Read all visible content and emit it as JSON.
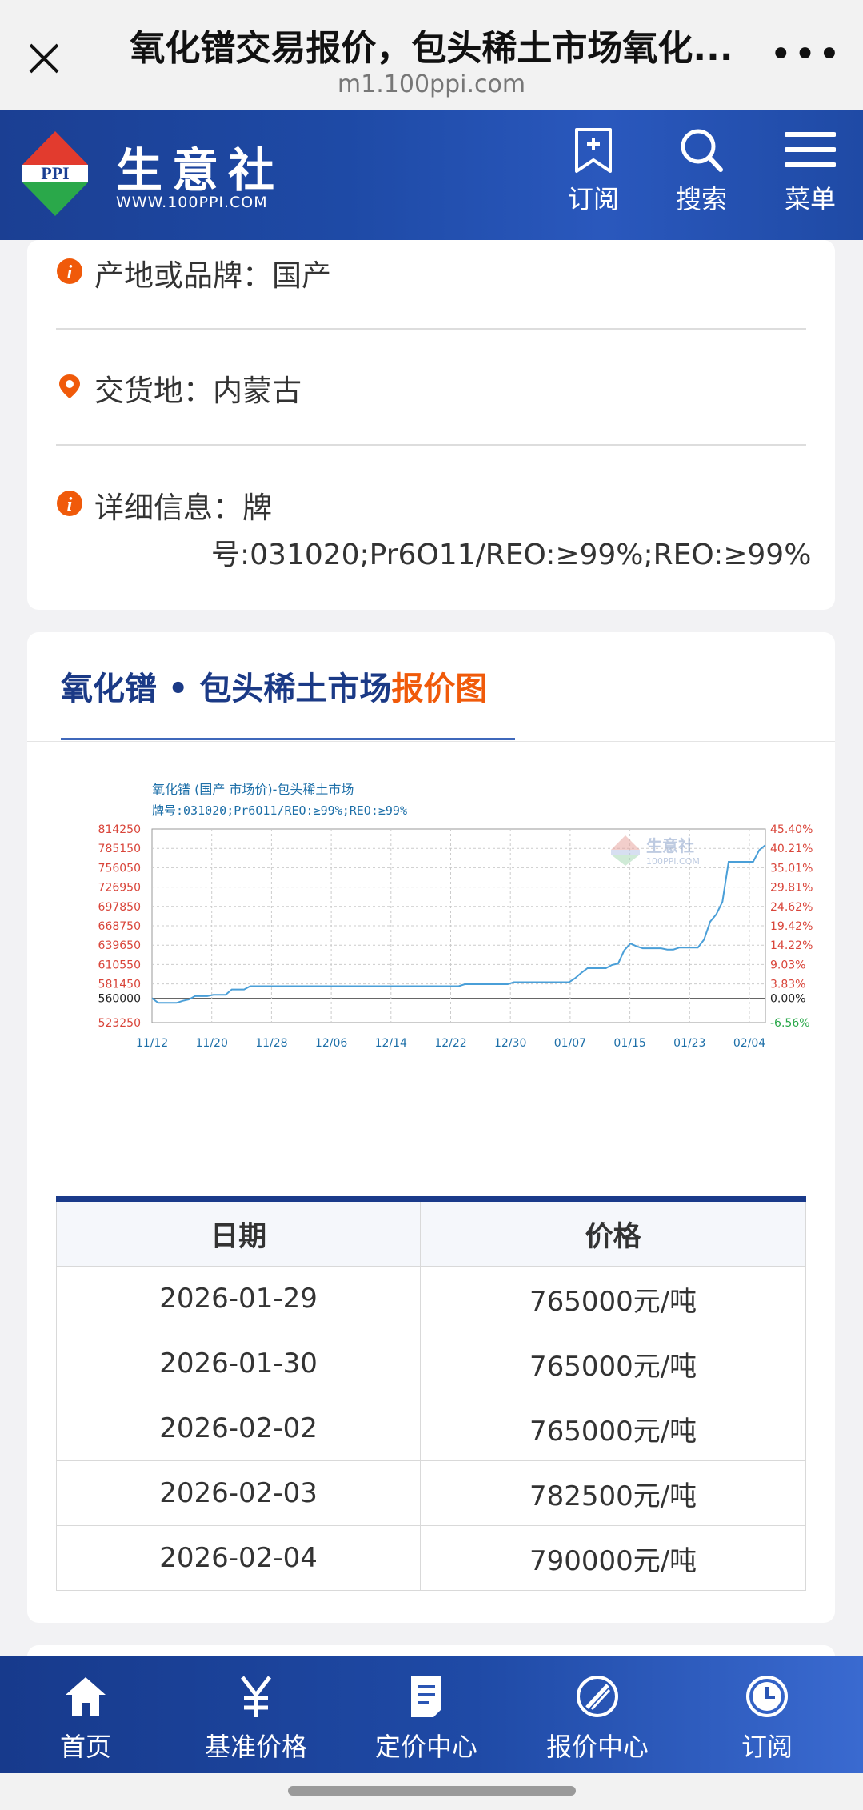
{
  "browser": {
    "title": "氧化镨交易报价，包头稀土市场氧化...",
    "url": "m1.100ppi.com"
  },
  "header": {
    "brand": "生意社",
    "brand_url": "WWW.100PPI.COM",
    "logo_text": "PPI",
    "subscribe_label": "订阅",
    "search_label": "搜索",
    "menu_label": "菜单"
  },
  "info": {
    "origin_label": "产地或品牌：",
    "origin_value": "国产",
    "delivery_label": "交货地：",
    "delivery_value": "内蒙古",
    "detail_label": "详细信息：",
    "detail_value_1": "牌",
    "detail_value_2": "号:031020;Pr6O11/REO:≥99%;REO:≥99%"
  },
  "chart_section": {
    "title_main": "氧化镨 • 包头稀土市场",
    "title_highlight": "报价图"
  },
  "chart_data": {
    "type": "line",
    "title": "氧化镨 (国产 市场价)-包头稀土市场",
    "subtitle": "牌号:031020;Pr6O11/REO:≥99%;REO:≥99%",
    "watermark": "生意社",
    "watermark_url": "100PPI.COM",
    "x_ticks": [
      "11/12",
      "11/20",
      "11/28",
      "12/06",
      "12/14",
      "12/22",
      "12/30",
      "01/07",
      "01/15",
      "01/23",
      "02/04"
    ],
    "y_left_ticks": [
      "814250",
      "785150",
      "756050",
      "726950",
      "697850",
      "668750",
      "639650",
      "610550",
      "581450",
      "560000",
      "523250"
    ],
    "y_right_ticks": [
      "45.40%",
      "40.21%",
      "35.01%",
      "29.81%",
      "24.62%",
      "19.42%",
      "14.22%",
      "9.03%",
      "3.83%",
      "0.00%",
      "-6.56%"
    ],
    "ylim": [
      523250,
      814250
    ],
    "baseline": 560000,
    "grid": true,
    "series": [
      {
        "values": [
          [
            0,
            560000
          ],
          [
            1,
            553000
          ],
          [
            2,
            553000
          ],
          [
            3,
            553000
          ],
          [
            4,
            553000
          ],
          [
            5,
            556000
          ],
          [
            6,
            558000
          ],
          [
            7,
            563000
          ],
          [
            8,
            563000
          ],
          [
            9,
            563000
          ],
          [
            10,
            565000
          ],
          [
            11,
            565000
          ],
          [
            12,
            565000
          ],
          [
            13,
            573000
          ],
          [
            14,
            573000
          ],
          [
            15,
            573000
          ],
          [
            16,
            578000
          ],
          [
            17,
            578000
          ],
          [
            18,
            578000
          ],
          [
            20,
            578000
          ],
          [
            25,
            578000
          ],
          [
            30,
            578000
          ],
          [
            35,
            578000
          ],
          [
            40,
            578000
          ],
          [
            45,
            578000
          ],
          [
            50,
            578000
          ],
          [
            51,
            581000
          ],
          [
            55,
            581000
          ],
          [
            58,
            581000
          ],
          [
            59,
            584000
          ],
          [
            65,
            584000
          ],
          [
            68,
            584000
          ],
          [
            69,
            590000
          ],
          [
            70,
            598000
          ],
          [
            71,
            605000
          ],
          [
            72,
            605000
          ],
          [
            74,
            605000
          ],
          [
            75,
            610000
          ],
          [
            76,
            612000
          ],
          [
            77,
            632000
          ],
          [
            78,
            642000
          ],
          [
            79,
            638000
          ],
          [
            80,
            635000
          ],
          [
            81,
            635000
          ],
          [
            82,
            635000
          ],
          [
            83,
            635000
          ],
          [
            84,
            633000
          ],
          [
            85,
            633000
          ],
          [
            86,
            636000
          ],
          [
            87,
            636000
          ],
          [
            88,
            636000
          ],
          [
            89,
            636000
          ],
          [
            90,
            648000
          ],
          [
            91,
            675000
          ],
          [
            92,
            686000
          ],
          [
            93,
            705000
          ],
          [
            94,
            765000
          ],
          [
            95,
            765000
          ],
          [
            96,
            765000
          ],
          [
            97,
            765000
          ],
          [
            98,
            765000
          ],
          [
            99,
            782500
          ],
          [
            100,
            790000
          ]
        ]
      }
    ]
  },
  "price_table": {
    "headers": [
      "日期",
      "价格"
    ],
    "rows": [
      [
        "2026-01-29",
        "765000元/吨"
      ],
      [
        "2026-01-30",
        "765000元/吨"
      ],
      [
        "2026-02-02",
        "765000元/吨"
      ],
      [
        "2026-02-03",
        "782500元/吨"
      ],
      [
        "2026-02-04",
        "790000元/吨"
      ]
    ]
  },
  "tabbar": {
    "home": "首页",
    "benchmark": "基准价格",
    "pricing": "定价中心",
    "quote": "报价中心",
    "subscribe": "订阅"
  },
  "colors": {
    "brand_blue": "#1b3f93",
    "accent_orange": "#f05a0a",
    "line": "#4a9fd8"
  }
}
